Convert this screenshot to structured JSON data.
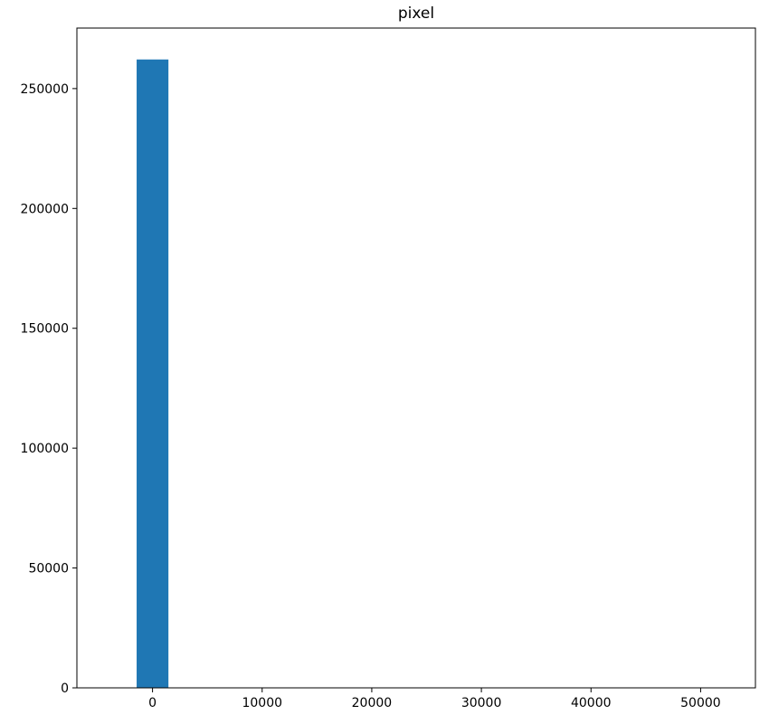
{
  "chart_data": {
    "type": "bar",
    "title": "pixel",
    "xlabel": "",
    "ylabel": "",
    "xlim": [
      -6900,
      55000
    ],
    "ylim": [
      0,
      275251
    ],
    "xticks": [
      0,
      10000,
      20000,
      30000,
      40000,
      50000
    ],
    "xtick_labels": [
      "0",
      "10000",
      "20000",
      "30000",
      "40000",
      "50000"
    ],
    "yticks": [
      0,
      50000,
      100000,
      150000,
      200000,
      250000
    ],
    "ytick_labels": [
      "0",
      "50000",
      "100000",
      "150000",
      "200000",
      "250000"
    ],
    "bars": [
      {
        "x_start": -1450,
        "x_end": 1450,
        "value": 262144
      }
    ],
    "grid": false,
    "bar_color": "#1f77b4"
  }
}
